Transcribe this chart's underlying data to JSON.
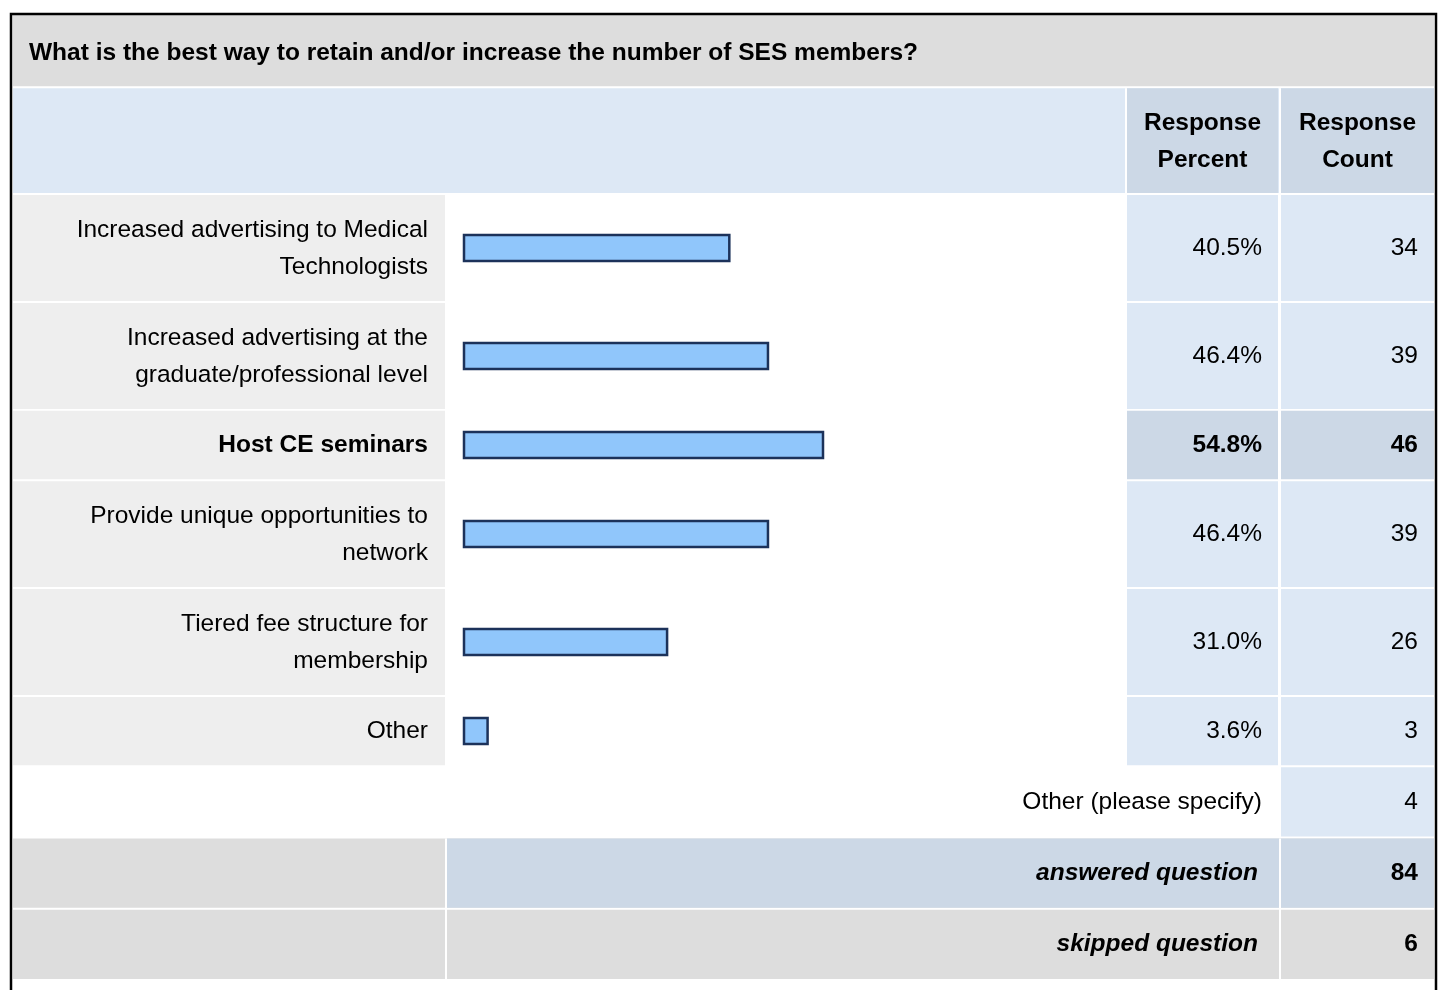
{
  "chart_data": {
    "type": "bar",
    "orientation": "horizontal",
    "title": "What is the best way to retain and/or increase the number of SES members?",
    "categories": [
      "Increased advertising to Medical Technologists",
      "Increased advertising at the graduate/professional level",
      "Host CE seminars",
      "Provide unique opportunities to network",
      "Tiered fee structure for membership",
      "Other"
    ],
    "values": [
      40.5,
      46.4,
      54.8,
      46.4,
      31.0,
      3.6
    ],
    "value_labels": [
      "40.5%",
      "46.4%",
      "54.8%",
      "46.4%",
      "31.0%",
      "3.6%"
    ],
    "color": "#90c6fb",
    "tick_labels": "y",
    "annotations": [
      "Response Percent",
      "Response Count",
      "34",
      "39",
      "46",
      "39",
      "26",
      "3",
      "Other (please specify)",
      "4",
      "answered question",
      "84",
      "skipped question",
      "6"
    ]
  }
}
